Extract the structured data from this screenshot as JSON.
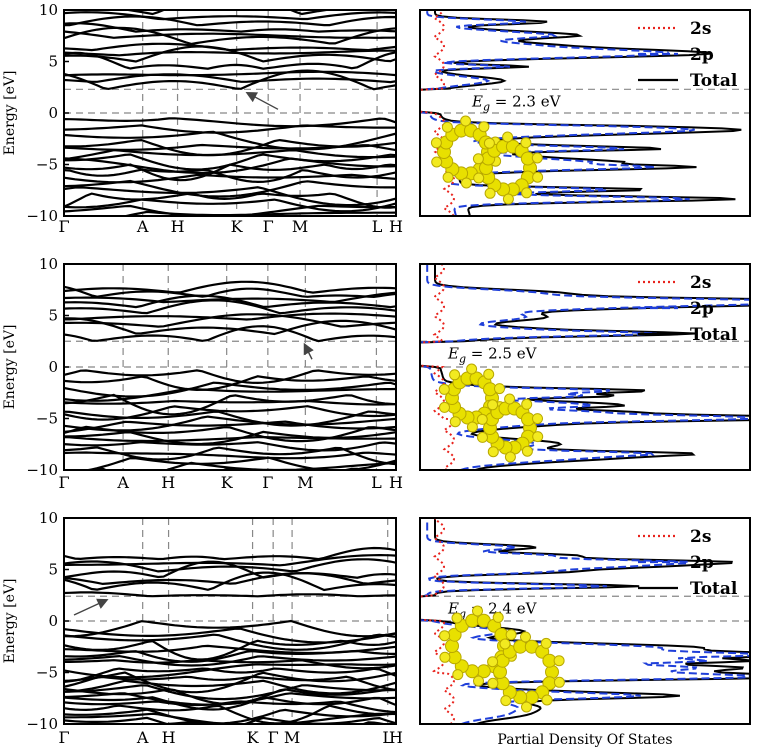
{
  "figure": {
    "ylabel": "Energy [eV]",
    "dos_xlabel": "Partial Density Of States"
  },
  "chart_data": [
    {
      "type": "line",
      "subtype": "band-structure",
      "panel": "top",
      "ylabel": "Energy [eV]",
      "ylim": [
        -10,
        10
      ],
      "yticks": [
        10,
        5,
        0,
        -5,
        -10
      ],
      "kpoints": [
        "Γ",
        "A",
        "H",
        "K",
        "Γ",
        "M",
        "L",
        "H"
      ],
      "kpos": [
        0,
        0.237,
        0.342,
        0.52,
        0.615,
        0.711,
        0.943,
        1.0
      ],
      "reference_lines": [
        0,
        2.3
      ],
      "series": [
        {
          "name": "valence",
          "values": [
            -0.5,
            -1.2,
            -1.8,
            -2.6,
            -3.1,
            -3.6,
            -4.0,
            -4.4,
            -5.0,
            -5.5,
            -6.0,
            -6.6,
            -7.2,
            -7.8,
            -8.4,
            -9.0,
            -9.6
          ]
        },
        {
          "name": "conduction",
          "values": [
            2.3,
            3.0,
            3.6,
            4.3,
            5.0,
            5.6,
            6.1,
            6.7,
            7.3,
            7.9,
            8.5,
            9.1,
            9.6
          ]
        }
      ]
    },
    {
      "type": "line",
      "subtype": "partial-dos",
      "panel": "top",
      "legend": [
        "2s",
        "2p",
        "Total"
      ],
      "legend_colors": [
        "#e8231d",
        "#1f3fd9",
        "#000000"
      ],
      "band_gap_label": "= 2.3 eV",
      "gap": 2.3,
      "ylim": [
        -10,
        10
      ]
    },
    {
      "type": "line",
      "subtype": "band-structure",
      "panel": "middle",
      "ylabel": "Energy [eV]",
      "ylim": [
        -10,
        10
      ],
      "yticks": [
        10,
        5,
        0,
        -5,
        -10
      ],
      "kpoints": [
        "Γ",
        "A",
        "H",
        "K",
        "Γ",
        "M",
        "L",
        "H"
      ],
      "kpos": [
        0,
        0.178,
        0.314,
        0.49,
        0.614,
        0.727,
        0.941,
        1.0
      ],
      "reference_lines": [
        0,
        2.5
      ],
      "series": [
        {
          "name": "valence",
          "values": [
            -0.3,
            -0.9,
            -1.5,
            -2.1,
            -2.7,
            -3.3,
            -3.8,
            -4.3,
            -4.8,
            -5.3,
            -5.8,
            -6.3,
            -6.8,
            -7.3,
            -7.8,
            -8.3,
            -8.8,
            -9.3,
            -9.8
          ]
        },
        {
          "name": "conduction",
          "values": [
            2.5,
            3.2,
            3.9,
            4.6,
            5.2,
            5.8,
            6.3,
            6.8,
            7.2
          ]
        }
      ]
    },
    {
      "type": "line",
      "subtype": "partial-dos",
      "panel": "middle",
      "legend": [
        "2s",
        "2p",
        "Total"
      ],
      "legend_colors": [
        "#e8231d",
        "#1f3fd9",
        "#000000"
      ],
      "band_gap_label": "= 2.5 eV",
      "gap": 2.5,
      "ylim": [
        -10,
        10
      ]
    },
    {
      "type": "line",
      "subtype": "band-structure",
      "panel": "bottom",
      "ylabel": "Energy [eV]",
      "ylim": [
        -10,
        10
      ],
      "yticks": [
        10,
        5,
        0,
        -5,
        -10
      ],
      "kpoints": [
        "Γ",
        "A",
        "H",
        "K",
        "Γ",
        "M",
        "L",
        "H"
      ],
      "kpos": [
        0,
        0.237,
        0.315,
        0.568,
        0.63,
        0.687,
        0.975,
        1.0
      ],
      "reference_lines": [
        0,
        2.4
      ],
      "series": [
        {
          "name": "valence",
          "values": [
            0.0,
            -0.7,
            -1.3,
            -1.9,
            -2.4,
            -2.9,
            -3.4,
            -3.8,
            -4.2,
            -4.6,
            -5.0,
            -5.4,
            -5.8,
            -6.2,
            -6.6,
            -7.0,
            -7.4,
            -7.8,
            -8.2,
            -8.6,
            -9.0,
            -9.4,
            -9.8
          ]
        },
        {
          "name": "conduction",
          "values": [
            2.4,
            3.0,
            3.6,
            4.2,
            4.8,
            5.4,
            6.0
          ]
        }
      ]
    },
    {
      "type": "line",
      "subtype": "partial-dos",
      "panel": "bottom",
      "legend": [
        "2s",
        "2p",
        "Total"
      ],
      "legend_colors": [
        "#e8231d",
        "#1f3fd9",
        "#000000"
      ],
      "band_gap_label": "= 2.4 eV",
      "gap": 2.4,
      "ylim": [
        -10,
        10
      ]
    }
  ]
}
